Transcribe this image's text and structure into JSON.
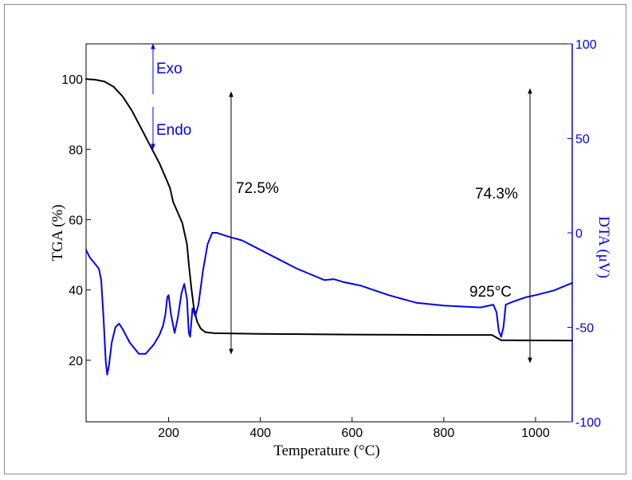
{
  "chart_data": {
    "type": "line",
    "xlabel": "Temperature (°C)",
    "ylabel_left": "TGA (%)",
    "ylabel_right": "DTA (μV)",
    "xlim": [
      20,
      1080
    ],
    "ylim_left": [
      2.5,
      110
    ],
    "ylim_right": [
      -100,
      100
    ],
    "x_ticks": [
      200,
      400,
      600,
      800,
      1000
    ],
    "y_left_ticks": [
      20,
      40,
      60,
      80,
      100
    ],
    "y_right_ticks": [
      100,
      50,
      0,
      -50,
      -100
    ],
    "grid": false,
    "colors": {
      "tga": "#000000",
      "dta": "#0000ff",
      "axis_right": "#0000ff"
    },
    "series": [
      {
        "axis": "left",
        "color": "#000000",
        "points": [
          [
            20,
            100
          ],
          [
            40,
            99.8
          ],
          [
            60,
            99.3
          ],
          [
            80,
            97.8
          ],
          [
            100,
            95
          ],
          [
            120,
            91
          ],
          [
            140,
            86
          ],
          [
            160,
            81
          ],
          [
            180,
            76
          ],
          [
            195,
            71.5
          ],
          [
            203,
            69
          ],
          [
            210,
            65
          ],
          [
            220,
            62
          ],
          [
            230,
            59
          ],
          [
            240,
            53
          ],
          [
            245,
            46
          ],
          [
            250,
            40
          ],
          [
            255,
            35
          ],
          [
            262,
            31
          ],
          [
            270,
            29
          ],
          [
            280,
            28
          ],
          [
            300,
            27.7
          ],
          [
            400,
            27.5
          ],
          [
            600,
            27.3
          ],
          [
            800,
            27.2
          ],
          [
            905,
            27.2
          ],
          [
            925,
            25.7
          ],
          [
            1080,
            25.6
          ]
        ]
      },
      {
        "axis": "right",
        "color": "#0000ff",
        "points": [
          [
            20,
            -9
          ],
          [
            28,
            -13
          ],
          [
            35,
            -15
          ],
          [
            48,
            -19
          ],
          [
            53,
            -25
          ],
          [
            58,
            -45
          ],
          [
            63,
            -68
          ],
          [
            66,
            -75
          ],
          [
            70,
            -70
          ],
          [
            76,
            -58
          ],
          [
            84,
            -50
          ],
          [
            92,
            -48
          ],
          [
            100,
            -51
          ],
          [
            115,
            -58
          ],
          [
            135,
            -64
          ],
          [
            150,
            -64
          ],
          [
            168,
            -59
          ],
          [
            180,
            -54
          ],
          [
            188,
            -49
          ],
          [
            193,
            -43
          ],
          [
            197,
            -34
          ],
          [
            200,
            -33
          ],
          [
            205,
            -43
          ],
          [
            213,
            -53
          ],
          [
            220,
            -45
          ],
          [
            228,
            -32
          ],
          [
            234,
            -27
          ],
          [
            240,
            -35
          ],
          [
            244,
            -53
          ],
          [
            247,
            -55
          ],
          [
            252,
            -40
          ],
          [
            258,
            -44
          ],
          [
            265,
            -38
          ],
          [
            275,
            -20
          ],
          [
            285,
            -6
          ],
          [
            295,
            0
          ],
          [
            305,
            0
          ],
          [
            330,
            -2
          ],
          [
            360,
            -4
          ],
          [
            400,
            -9
          ],
          [
            440,
            -14
          ],
          [
            480,
            -19
          ],
          [
            520,
            -23
          ],
          [
            540,
            -25
          ],
          [
            560,
            -24.5
          ],
          [
            580,
            -26
          ],
          [
            620,
            -28
          ],
          [
            680,
            -33
          ],
          [
            740,
            -37
          ],
          [
            800,
            -38.5
          ],
          [
            880,
            -39.5
          ],
          [
            908,
            -38
          ],
          [
            915,
            -42
          ],
          [
            920,
            -52
          ],
          [
            925,
            -55
          ],
          [
            930,
            -50
          ],
          [
            935,
            -38
          ],
          [
            950,
            -36.5
          ],
          [
            980,
            -34
          ],
          [
            1000,
            -33
          ],
          [
            1040,
            -30.5
          ],
          [
            1080,
            -26.5
          ]
        ]
      }
    ],
    "annotations": {
      "exo": "Exo",
      "endo": "Endo",
      "loss1": "72.5%",
      "loss2": "74.3%",
      "peak": "925°C"
    }
  }
}
